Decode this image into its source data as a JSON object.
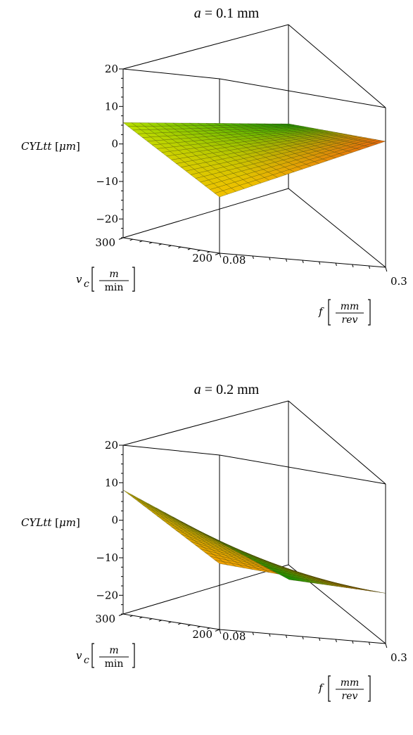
{
  "chart_data": [
    {
      "type": "surface3d",
      "title_var": "a",
      "title_rest": " = 0.1 mm",
      "zlabel": {
        "var": "CYLtt",
        "unit": "μm"
      },
      "ylabel": {
        "var": "v",
        "sub": "c",
        "unit_num": "m",
        "unit_den": "min"
      },
      "xlabel": {
        "var": "f",
        "unit_num": "mm",
        "unit_den": "rev"
      },
      "z_ticks": [
        "20",
        "10",
        "0",
        "−10",
        "−20"
      ],
      "v_ticks": [
        "300",
        "200"
      ],
      "f_ticks": [
        "0.08",
        "0.3"
      ],
      "f_range": [
        0.08,
        0.3
      ],
      "v_range": [
        200,
        300
      ],
      "z_range": [
        -25,
        20
      ],
      "corners": {
        "f_min_v_max": 4.7,
        "f_min_v_min": -10.5,
        "f_max_v_max": 8.0,
        "f_max_v_min": 7.5
      },
      "surface_colors": {
        "low": "#f0c000",
        "mid": "#b8e000",
        "high": "#2aa000",
        "hot": "#e05a10"
      }
    },
    {
      "type": "surface3d",
      "title_var": "a",
      "title_rest": " = 0.2 mm",
      "zlabel": {
        "var": "CYLtt",
        "unit": "μm"
      },
      "ylabel": {
        "var": "v",
        "sub": "c",
        "unit_num": "m",
        "unit_den": "min"
      },
      "xlabel": {
        "var": "f",
        "unit_num": "mm",
        "unit_den": "rev"
      },
      "z_ticks": [
        "20",
        "10",
        "0",
        "−10",
        "−20"
      ],
      "v_ticks": [
        "300",
        "200"
      ],
      "f_ticks": [
        "0.08",
        "0.3"
      ],
      "f_range": [
        0.08,
        0.3
      ],
      "v_range": [
        200,
        300
      ],
      "z_range": [
        -25,
        20
      ],
      "corners": {
        "f_min_v_max": 7.0,
        "f_min_v_min": -8.0,
        "f_max_v_max": -12.5,
        "f_max_v_min": -12.0
      },
      "surface_colors": {
        "low": "#f0a000",
        "mid": "#c8b000",
        "high": "#2a9a00",
        "hot": "#e06010"
      }
    }
  ]
}
